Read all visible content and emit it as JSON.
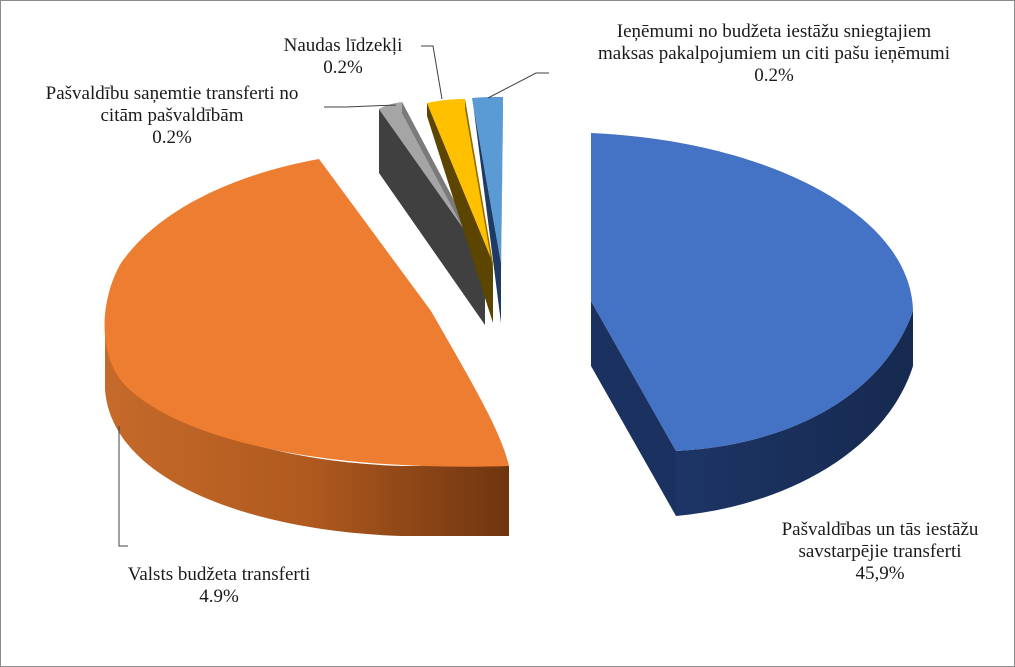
{
  "chart_data": {
    "type": "pie",
    "style": "3d-exploded",
    "slices": [
      {
        "id": "pasv-savstarp",
        "label_lines": [
          "Pašvaldības un tās iestāžu",
          "savstarpējie transferti"
        ],
        "value_text": "45,9%",
        "value": 45.9,
        "color": "#4472c4"
      },
      {
        "id": "valsts-budz",
        "label_lines": [
          "Valsts budžeta transferti"
        ],
        "value_text": "4.9%",
        "value": 4.9,
        "color": "#ed7d31"
      },
      {
        "id": "pasv-citam",
        "label_lines": [
          "Pašvaldību saņemtie transferti no",
          "citām pašvaldībām"
        ],
        "value_text": "0.2%",
        "value": 0.2,
        "color": "#a5a5a5"
      },
      {
        "id": "naudas",
        "label_lines": [
          "Naudas līdzekļi"
        ],
        "value_text": "0.2%",
        "value": 0.2,
        "color": "#ffc000"
      },
      {
        "id": "ienemumi",
        "label_lines": [
          "Ieņēmumi no budžeta iestāžu sniegtajiem",
          "maksas pakalpojumiem un citi pašu ieņēmumi"
        ],
        "value_text": "0.2%",
        "value": 0.2,
        "color": "#5b9bd5"
      }
    ]
  }
}
